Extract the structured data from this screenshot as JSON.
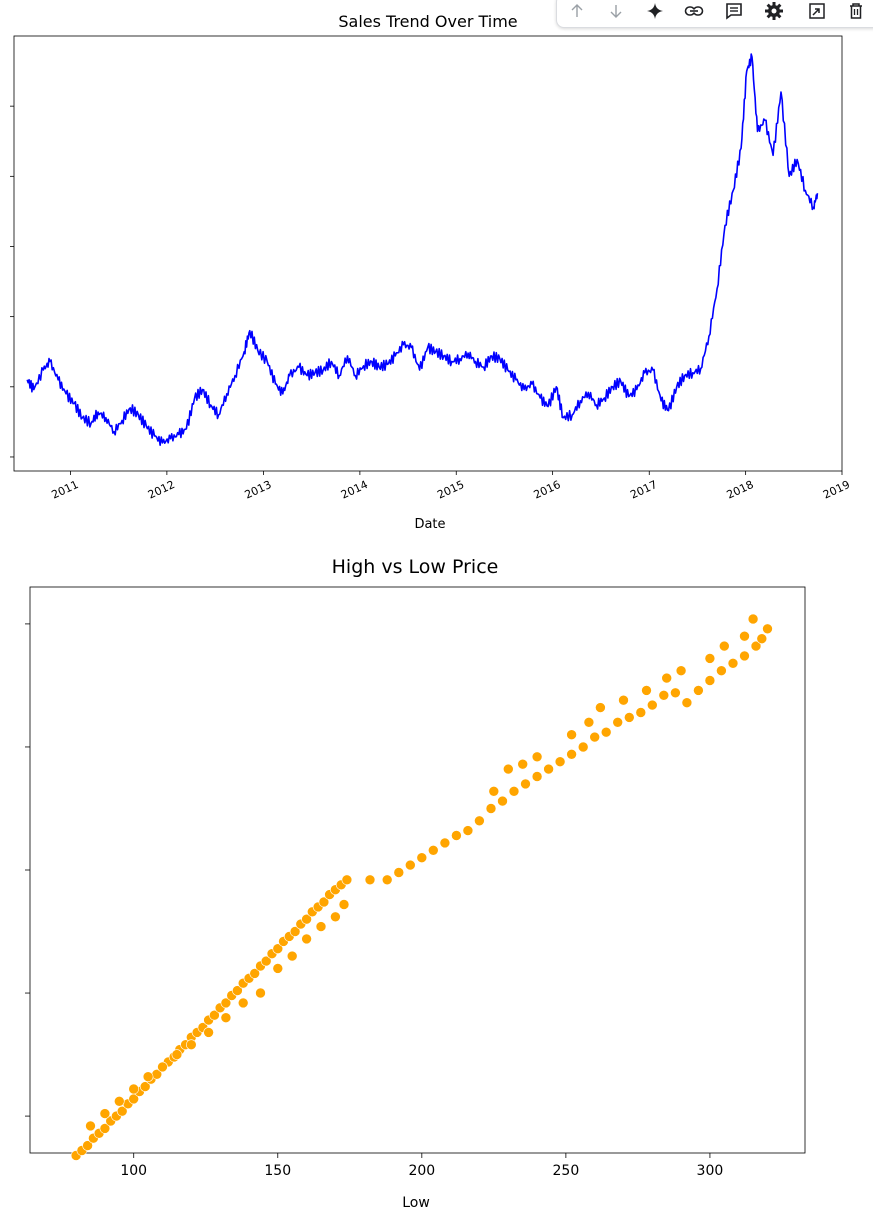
{
  "toolbar": {
    "buttons": [
      {
        "name": "move-cell-up-button",
        "icon": "arrow-up-icon"
      },
      {
        "name": "move-cell-down-button",
        "icon": "arrow-down-icon"
      },
      {
        "name": "ai-sparkle-button",
        "icon": "sparkle-icon"
      },
      {
        "name": "link-to-cell-button",
        "icon": "link-icon"
      },
      {
        "name": "comment-button",
        "icon": "comment-icon"
      },
      {
        "name": "settings-button",
        "icon": "gear-icon"
      },
      {
        "name": "mirror-cell-button",
        "icon": "mirror-icon"
      },
      {
        "name": "delete-cell-button",
        "icon": "trash-icon"
      }
    ]
  },
  "colors": {
    "line": "#0000ff",
    "scatter": "#ffa500",
    "scatter_edge": "#ffffff"
  },
  "chart_data": [
    {
      "type": "line",
      "title": "Sales Trend Over Time",
      "xlabel": "Date",
      "ylabel": "",
      "xlim": [
        "2010-06-01",
        "2019-01-01"
      ],
      "x_ticks": [
        "2011",
        "2012",
        "2013",
        "2014",
        "2015",
        "2016",
        "2017",
        "2018",
        "2019"
      ],
      "y_range": [
        90,
        400
      ],
      "series": [
        {
          "x": [
            "2010-07-21",
            "2010-08-15",
            "2010-09-20",
            "2010-10-15",
            "2010-11-15",
            "2010-12-15",
            "2011-01-15",
            "2011-02-15",
            "2011-03-20",
            "2011-04-15",
            "2011-05-15",
            "2011-06-15",
            "2011-07-15",
            "2011-08-15",
            "2011-09-15",
            "2011-10-15",
            "2011-11-15",
            "2011-12-15",
            "2012-01-15",
            "2012-02-15",
            "2012-03-15",
            "2012-04-15",
            "2012-05-15",
            "2012-06-15",
            "2012-07-15",
            "2012-08-15",
            "2012-09-15",
            "2012-10-20",
            "2012-11-10",
            "2012-12-10",
            "2013-01-15",
            "2013-02-15",
            "2013-03-15",
            "2013-04-10",
            "2013-05-15",
            "2013-06-15",
            "2013-07-15",
            "2013-08-15",
            "2013-09-15",
            "2013-10-15",
            "2013-11-15",
            "2013-12-15",
            "2014-01-15",
            "2014-02-15",
            "2014-03-15",
            "2014-04-15",
            "2014-05-15",
            "2014-06-15",
            "2014-07-15",
            "2014-08-15",
            "2014-09-15",
            "2014-10-15",
            "2014-11-15",
            "2014-12-15",
            "2015-01-15",
            "2015-02-15",
            "2015-03-15",
            "2015-04-15",
            "2015-05-15",
            "2015-06-15",
            "2015-07-15",
            "2015-08-15",
            "2015-09-15",
            "2015-10-15",
            "2015-11-15",
            "2015-12-15",
            "2016-01-15",
            "2016-02-10",
            "2016-03-15",
            "2016-04-15",
            "2016-05-15",
            "2016-06-15",
            "2016-07-15",
            "2016-08-15",
            "2016-09-15",
            "2016-10-15",
            "2016-11-15",
            "2016-12-15",
            "2017-01-15",
            "2017-02-15",
            "2017-03-15",
            "2017-04-15",
            "2017-05-15",
            "2017-06-15",
            "2017-07-15",
            "2017-08-15",
            "2017-09-15",
            "2017-10-15",
            "2017-11-15",
            "2017-12-15",
            "2018-01-05",
            "2018-01-25",
            "2018-02-15",
            "2018-03-15",
            "2018-04-15",
            "2018-05-15",
            "2018-06-15",
            "2018-07-15",
            "2018-08-15",
            "2018-09-15",
            "2018-09-30"
          ],
          "y": [
            155,
            148,
            162,
            168,
            155,
            145,
            138,
            128,
            124,
            132,
            128,
            118,
            126,
            135,
            130,
            122,
            115,
            110,
            113,
            116,
            120,
            142,
            148,
            137,
            130,
            145,
            158,
            175,
            190,
            176,
            168,
            152,
            145,
            158,
            164,
            158,
            160,
            162,
            168,
            158,
            172,
            158,
            165,
            168,
            164,
            166,
            172,
            180,
            178,
            162,
            178,
            175,
            172,
            168,
            170,
            174,
            168,
            164,
            172,
            170,
            162,
            155,
            148,
            152,
            142,
            136,
            150,
            128,
            130,
            140,
            146,
            137,
            142,
            150,
            154,
            143,
            148,
            160,
            162,
            140,
            133,
            150,
            158,
            160,
            163,
            186,
            220,
            265,
            290,
            320,
            375,
            385,
            332,
            340,
            315,
            360,
            300,
            312,
            290,
            278,
            288
          ]
        }
      ]
    },
    {
      "type": "scatter",
      "title": "High vs Low Price",
      "xlabel": "Low",
      "ylabel": "",
      "xlim": [
        64,
        333
      ],
      "x_ticks": [
        100,
        150,
        200,
        250,
        300
      ],
      "y_range": [
        85,
        315
      ],
      "series": [
        {
          "x": [
            80,
            82,
            84,
            86,
            88,
            90,
            92,
            94,
            96,
            98,
            100,
            102,
            104,
            106,
            108,
            110,
            112,
            114,
            116,
            118,
            120,
            122,
            124,
            126,
            128,
            130,
            132,
            134,
            136,
            138,
            140,
            142,
            144,
            146,
            148,
            150,
            152,
            154,
            156,
            158,
            160,
            162,
            164,
            166,
            168,
            170,
            172,
            174,
            182,
            188,
            192,
            196,
            200,
            204,
            208,
            212,
            216,
            220,
            224,
            228,
            232,
            236,
            240,
            244,
            248,
            252,
            256,
            260,
            264,
            268,
            272,
            276,
            280,
            284,
            288,
            292,
            296,
            300,
            304,
            308,
            312,
            316,
            318,
            320,
            85,
            90,
            95,
            100,
            105,
            110,
            115,
            120,
            126,
            132,
            138,
            144,
            150,
            155,
            160,
            165,
            170,
            173,
            225,
            230,
            235,
            240,
            252,
            258,
            262,
            270,
            278,
            285,
            290,
            300,
            305,
            312,
            315
          ],
          "y": [
            84,
            86,
            88,
            91,
            93,
            95,
            98,
            100,
            102,
            105,
            107,
            110,
            112,
            115,
            117,
            120,
            122,
            124,
            127,
            129,
            132,
            134,
            136,
            139,
            141,
            144,
            146,
            149,
            151,
            154,
            156,
            158,
            161,
            163,
            166,
            168,
            171,
            173,
            175,
            178,
            180,
            183,
            185,
            187,
            190,
            192,
            194,
            196,
            196,
            196,
            199,
            202,
            205,
            208,
            211,
            214,
            216,
            220,
            225,
            228,
            232,
            235,
            238,
            241,
            244,
            247,
            250,
            254,
            256,
            260,
            262,
            264,
            267,
            271,
            272,
            268,
            273,
            277,
            281,
            284,
            287,
            291,
            294,
            298,
            96,
            101,
            106,
            111,
            116,
            120,
            125,
            129,
            134,
            140,
            146,
            150,
            160,
            165,
            172,
            177,
            181,
            186,
            232,
            241,
            243,
            246,
            255,
            260,
            266,
            269,
            273,
            278,
            281,
            286,
            291,
            295,
            302
          ]
        }
      ]
    }
  ]
}
